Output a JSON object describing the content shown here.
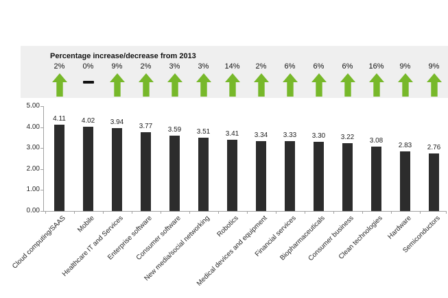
{
  "colors": {
    "arrow_green": "#77b82a",
    "bar_dark": "#2c2c2c",
    "band_background": "#efefef",
    "axis_gray": "#a0a0a0",
    "flat_dash_black": "#111111"
  },
  "chart_data": {
    "type": "bar",
    "title": "",
    "categories": [
      "Cloud computing/SAAS",
      "Mobile",
      "Healthcare IT and Services",
      "Enterprise software",
      "Consumer software",
      "New media/social networking",
      "Robotics",
      "Medical devices and equipment",
      "Financial services",
      "Biopharmaceuticals",
      "Consumer business",
      "Clean technologies",
      "Hardware",
      "Semiconductors"
    ],
    "values": [
      4.11,
      4.02,
      3.94,
      3.77,
      3.59,
      3.51,
      3.41,
      3.34,
      3.33,
      3.3,
      3.22,
      3.08,
      2.83,
      2.76
    ],
    "value_labels": [
      "4.11",
      "4.02",
      "3.94",
      "3.77",
      "3.59",
      "3.51",
      "3.41",
      "3.34",
      "3.33",
      "3.30",
      "3.22",
      "3.08",
      "2.83",
      "2.76"
    ],
    "annotations": {
      "band_title": "Percentage increase/decrease from 2013",
      "pct_change_from_2013": [
        "2%",
        "0%",
        "9%",
        "2%",
        "3%",
        "3%",
        "14%",
        "2%",
        "6%",
        "6%",
        "6%",
        "16%",
        "9%",
        "9%"
      ],
      "trend_direction": [
        "up",
        "flat",
        "up",
        "up",
        "up",
        "up",
        "up",
        "up",
        "up",
        "up",
        "up",
        "up",
        "up",
        "up"
      ]
    },
    "xlabel": "",
    "ylabel": "",
    "ylim": [
      0,
      5
    ],
    "ytick_labels": [
      "0.00",
      "1.00",
      "2.00",
      "3.00",
      "4.00",
      "5.00"
    ],
    "grid": false,
    "legend": false,
    "x_labels_rotation_deg": 45
  }
}
